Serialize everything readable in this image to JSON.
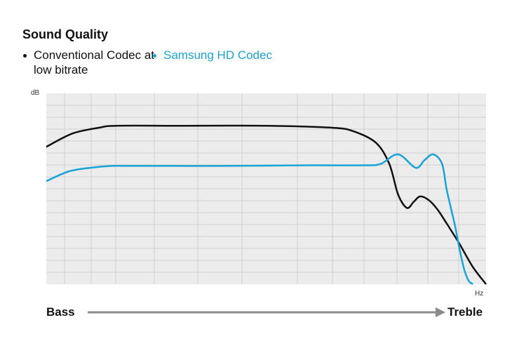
{
  "chart_data": {
    "type": "line",
    "title": "Sound Quality",
    "ylabel": "dB",
    "xlabel": "Hz",
    "x_range": [
      0,
      100
    ],
    "y_range": [
      0,
      100
    ],
    "grid": true,
    "grid_color": "#cfcfcf",
    "plot_background": "#ececec",
    "series": [
      {
        "name": "Conventional Codec at low bitrate",
        "color": "#111111",
        "x": [
          0,
          6,
          12,
          16,
          30,
          50,
          65,
          70,
          75,
          78,
          80,
          82,
          83.5,
          85,
          87,
          89,
          91,
          94,
          97,
          100
        ],
        "y": [
          72,
          79,
          82,
          83,
          83,
          83,
          82,
          80,
          74,
          63,
          47,
          40,
          43,
          46,
          44,
          39,
          32,
          21,
          9,
          0
        ],
        "x_max": 88
      },
      {
        "name": "Samsung HD Codec",
        "color": "#1aa3d6",
        "x": [
          0,
          5,
          10,
          15,
          20,
          40,
          60,
          72,
          76,
          80,
          84,
          86,
          88,
          90,
          91,
          92,
          93,
          94,
          95,
          96,
          97
        ],
        "y": [
          54,
          59,
          61,
          62,
          62,
          62,
          62.3,
          62.3,
          63,
          68,
          61,
          65,
          68,
          63,
          50,
          40,
          30,
          18,
          8,
          2,
          0
        ],
        "x_max": 100
      }
    ]
  },
  "legend": [
    {
      "label": "Conventional Codec at low bitrate",
      "color": "#111111"
    },
    {
      "label": "Samsung HD Codec",
      "color": "#1aa3d6"
    }
  ],
  "scale_labels": {
    "left": "Bass",
    "right": "Treble"
  }
}
